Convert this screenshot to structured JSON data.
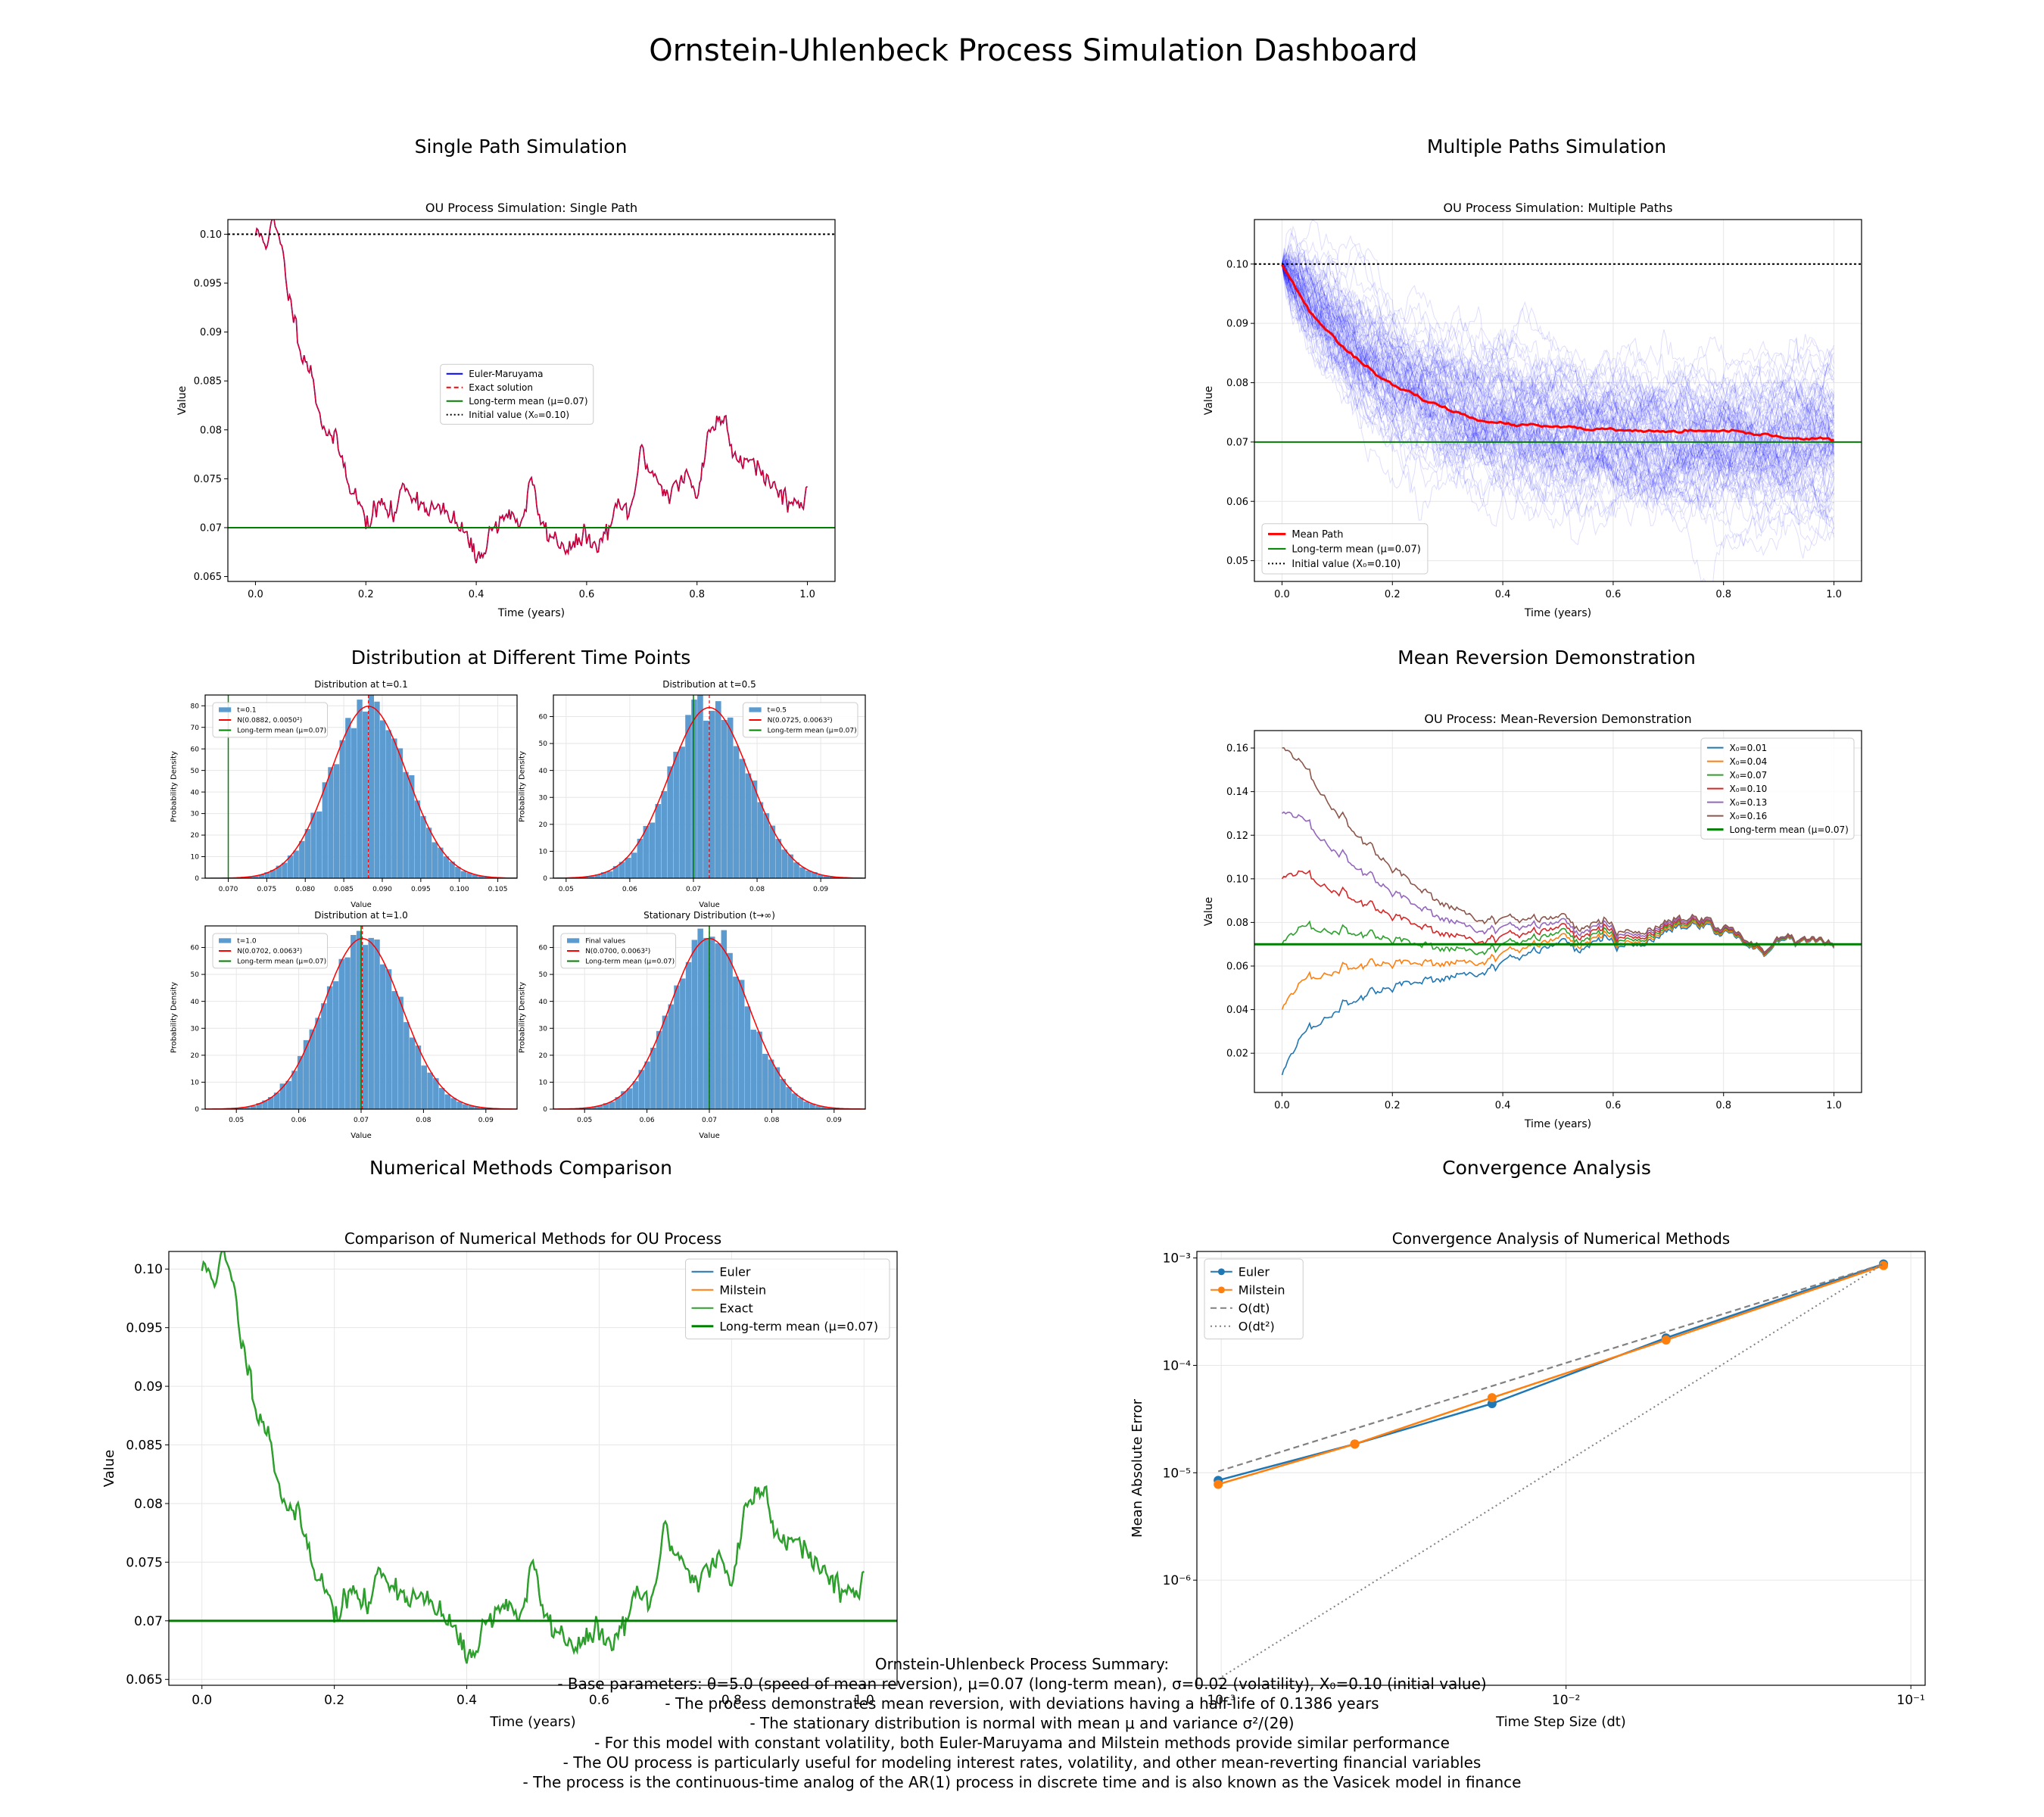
{
  "title": "Ornstein-Uhlenbeck Process Simulation Dashboard",
  "panels": {
    "single": "Single Path Simulation",
    "multi": "Multiple Paths Simulation",
    "dist": "Distribution at Different Time Points",
    "revert": "Mean Reversion Demonstration",
    "methods": "Numerical Methods Comparison",
    "conv": "Convergence Analysis"
  },
  "summary": {
    "heading": "Ornstein-Uhlenbeck Process Summary:",
    "lines": [
      "- Base parameters: θ=5.0 (speed of mean reversion), μ=0.07 (long-term mean), σ=0.02 (volatility), X₀=0.10 (initial value)",
      "- The process demonstrates mean reversion, with deviations having a half-life of 0.1386 years",
      "- The stationary distribution is normal with mean μ and variance σ²/(2θ)",
      "- For this model with constant volatility, both Euler-Maruyama and Milstein methods provide similar performance",
      "- The OU process is particularly useful for modeling interest rates, volatility, and other mean-reverting financial variables",
      "- The process is the continuous-time analog of the AR(1) process in discrete time and is also known as the Vasicek model in finance"
    ]
  },
  "colors": {
    "euler": "#0000ff",
    "exact": "#ff0000",
    "mean": "#008000",
    "path": "#a0005a",
    "hist": "#5b9bd0",
    "c1": "#1f77b4",
    "c2": "#ff7f0e",
    "c3": "#2ca02c",
    "c4": "#d62728",
    "c5": "#9467bd",
    "c6": "#8c564b",
    "grid": "#e6e6e6"
  },
  "chart_data": [
    {
      "id": "single",
      "type": "line",
      "title": "OU Process Simulation: Single Path",
      "xlabel": "Time (years)",
      "ylabel": "Value",
      "xlim": [
        -0.05,
        1.05
      ],
      "ylim": [
        0.0645,
        0.1015
      ],
      "xticks": [
        0.0,
        0.2,
        0.4,
        0.6,
        0.8,
        1.0
      ],
      "yticks": [
        0.065,
        0.07,
        0.075,
        0.08,
        0.085,
        0.09,
        0.095,
        0.1
      ],
      "grid": false,
      "legend_position": "center",
      "legend": [
        "Euler-Maruyama",
        "Exact solution",
        "Long-term mean (μ=0.07)",
        "Initial value (X₀=0.10)"
      ],
      "hlines": [
        0.07,
        0.1
      ],
      "path": {
        "x": [
          0,
          0.02,
          0.03,
          0.04,
          0.05,
          0.06,
          0.08,
          0.1,
          0.12,
          0.15,
          0.17,
          0.2,
          0.23,
          0.25,
          0.27,
          0.3,
          0.33,
          0.35,
          0.38,
          0.4,
          0.42,
          0.45,
          0.48,
          0.5,
          0.52,
          0.55,
          0.58,
          0.6,
          0.62,
          0.65,
          0.68,
          0.7,
          0.72,
          0.75,
          0.78,
          0.8,
          0.82,
          0.85,
          0.87,
          0.9,
          0.93,
          0.95,
          0.98,
          1.0
        ],
        "y": [
          0.1,
          0.0995,
          0.1008,
          0.1,
          0.0975,
          0.094,
          0.089,
          0.086,
          0.081,
          0.078,
          0.075,
          0.0705,
          0.0725,
          0.071,
          0.0745,
          0.0725,
          0.0718,
          0.071,
          0.0695,
          0.0665,
          0.069,
          0.0715,
          0.0705,
          0.0745,
          0.07,
          0.0685,
          0.068,
          0.0693,
          0.0675,
          0.0715,
          0.0718,
          0.0778,
          0.0755,
          0.0735,
          0.0752,
          0.073,
          0.08,
          0.0812,
          0.077,
          0.0776,
          0.0745,
          0.0738,
          0.0722,
          0.0735
        ]
      }
    },
    {
      "id": "multi",
      "type": "line",
      "title": "OU Process Simulation: Multiple Paths",
      "xlabel": "Time (years)",
      "ylabel": "Value",
      "xlim": [
        -0.05,
        1.05
      ],
      "ylim": [
        0.0465,
        0.1075
      ],
      "xticks": [
        0.0,
        0.2,
        0.4,
        0.6,
        0.8,
        1.0
      ],
      "yticks": [
        0.05,
        0.06,
        0.07,
        0.08,
        0.09,
        0.1
      ],
      "grid": true,
      "legend_position": "lower-left",
      "legend": [
        "Mean Path",
        "Long-term mean (μ=0.07)",
        "Initial value (X₀=0.10)"
      ],
      "hlines": [
        0.07,
        0.1
      ],
      "num_paths": 100,
      "mean_path": {
        "x": [
          0,
          0.05,
          0.1,
          0.15,
          0.2,
          0.25,
          0.3,
          0.35,
          0.4,
          0.45,
          0.5,
          0.55,
          0.6,
          0.65,
          0.7,
          0.75,
          0.8,
          0.85,
          0.9,
          0.95,
          1.0
        ],
        "y": [
          0.1,
          0.092,
          0.087,
          0.083,
          0.0795,
          0.0775,
          0.0755,
          0.074,
          0.073,
          0.0728,
          0.0725,
          0.0722,
          0.072,
          0.0718,
          0.0718,
          0.0718,
          0.0718,
          0.0714,
          0.071,
          0.0705,
          0.0705
        ]
      }
    },
    {
      "id": "dist",
      "type": "bar",
      "subtitle": "histograms",
      "panels": [
        {
          "title": "Distribution at t=0.1",
          "legend": [
            "t=0.1",
            "N(0.0882, 0.0050²)",
            "Long-term mean (μ=0.07)"
          ],
          "mean": 0.0882,
          "sd": 0.005,
          "xlim": [
            0.067,
            0.1075
          ],
          "ylim": [
            0,
            85
          ],
          "xticks": [
            0.07,
            0.075,
            0.08,
            0.085,
            0.09,
            0.095,
            0.1,
            0.105
          ],
          "yticks": [
            0,
            10,
            20,
            30,
            40,
            50,
            60,
            70,
            80
          ],
          "mu": 0.07,
          "xlabel": "Value",
          "ylabel": "Probability Density",
          "decimals": 3
        },
        {
          "title": "Distribution at t=0.5",
          "legend": [
            "t=0.5",
            "N(0.0725, 0.0063²)",
            "Long-term mean (μ=0.07)"
          ],
          "mean": 0.0725,
          "sd": 0.0063,
          "xlim": [
            0.048,
            0.097
          ],
          "ylim": [
            0,
            68
          ],
          "xticks": [
            0.05,
            0.06,
            0.07,
            0.08,
            0.09
          ],
          "yticks": [
            0,
            10,
            20,
            30,
            40,
            50,
            60
          ],
          "mu": 0.07,
          "xlabel": "Value",
          "ylabel": "Probability Density",
          "decimals": 2
        },
        {
          "title": "Distribution at t=1.0",
          "legend": [
            "t=1.0",
            "N(0.0702, 0.0063²)",
            "Long-term mean (μ=0.07)"
          ],
          "mean": 0.0702,
          "sd": 0.0063,
          "xlim": [
            0.045,
            0.095
          ],
          "ylim": [
            0,
            68
          ],
          "xticks": [
            0.05,
            0.06,
            0.07,
            0.08,
            0.09
          ],
          "yticks": [
            0,
            10,
            20,
            30,
            40,
            50,
            60
          ],
          "mu": 0.07,
          "xlabel": "Value",
          "ylabel": "Probability Density",
          "decimals": 2
        },
        {
          "title": "Stationary Distribution (t→∞)",
          "legend": [
            "Final values",
            "N(0.0700, 0.0063²)",
            "Long-term mean (μ=0.07)"
          ],
          "mean": 0.07,
          "sd": 0.0063,
          "xlim": [
            0.045,
            0.095
          ],
          "ylim": [
            0,
            68
          ],
          "xticks": [
            0.05,
            0.06,
            0.07,
            0.08,
            0.09
          ],
          "yticks": [
            0,
            10,
            20,
            30,
            40,
            50,
            60
          ],
          "mu": 0.07,
          "xlabel": "Value",
          "ylabel": "Probability Density",
          "decimals": 2
        }
      ]
    },
    {
      "id": "revert",
      "type": "line",
      "title": "OU Process: Mean-Reversion Demonstration",
      "xlabel": "Time (years)",
      "ylabel": "Value",
      "xlim": [
        -0.05,
        1.05
      ],
      "ylim": [
        0.002,
        0.168
      ],
      "xticks": [
        0.0,
        0.2,
        0.4,
        0.6,
        0.8,
        1.0
      ],
      "yticks": [
        0.02,
        0.04,
        0.06,
        0.08,
        0.1,
        0.12,
        0.14,
        0.16
      ],
      "grid": true,
      "legend_position": "upper-right",
      "legend": [
        "X₀=0.01",
        "X₀=0.04",
        "X₀=0.07",
        "X₀=0.10",
        "X₀=0.13",
        "X₀=0.16",
        "Long-term mean (μ=0.07)"
      ],
      "series": [
        {
          "name": "X₀=0.01",
          "x0": 0.01
        },
        {
          "name": "X₀=0.04",
          "x0": 0.04
        },
        {
          "name": "X₀=0.07",
          "x0": 0.07
        },
        {
          "name": "X₀=0.10",
          "x0": 0.1
        },
        {
          "name": "X₀=0.13",
          "x0": 0.13
        },
        {
          "name": "X₀=0.16",
          "x0": 0.16
        }
      ],
      "theta": 5.0,
      "mu": 0.07
    },
    {
      "id": "methods",
      "type": "line",
      "title": "Comparison of Numerical Methods for OU Process",
      "xlabel": "Time (years)",
      "ylabel": "Value",
      "xlim": [
        -0.05,
        1.05
      ],
      "ylim": [
        0.0645,
        0.1015
      ],
      "xticks": [
        0.0,
        0.2,
        0.4,
        0.6,
        0.8,
        1.0
      ],
      "yticks": [
        0.065,
        0.07,
        0.075,
        0.08,
        0.085,
        0.09,
        0.095,
        0.1
      ],
      "grid": true,
      "legend_position": "upper-right",
      "legend": [
        "Euler",
        "Milstein",
        "Exact",
        "Long-term mean (μ=0.07)"
      ],
      "hlines": [
        0.07
      ]
    },
    {
      "id": "conv",
      "type": "line",
      "log_x": true,
      "log_y": true,
      "title": "Convergence Analysis of Numerical Methods",
      "xlabel": "Time Step Size (dt)",
      "ylabel": "Mean Absolute Error",
      "xlim": [
        0.00085,
        0.11
      ],
      "ylim": [
        1.05e-07,
        0.00115
      ],
      "xticks": [
        0.001,
        0.01,
        0.1
      ],
      "xtick_labels": [
        "10⁻³",
        "10⁻²",
        "10⁻¹"
      ],
      "yticks": [
        1e-06,
        1e-05,
        0.0001,
        0.001
      ],
      "ytick_labels": [
        "10⁻⁶",
        "10⁻⁵",
        "10⁻⁴",
        "10⁻³"
      ],
      "grid": true,
      "legend_position": "upper-left",
      "legend": [
        "Euler",
        "Milstein",
        "O(dt)",
        "O(dt²)"
      ],
      "series": [
        {
          "name": "Euler",
          "x": [
            0.00098,
            0.00244,
            0.0061,
            0.0195,
            0.0833
          ],
          "y": [
            8.5e-06,
            1.85e-05,
            4.4e-05,
            0.00018,
            0.00088
          ]
        },
        {
          "name": "Milstein",
          "x": [
            0.00098,
            0.00244,
            0.0061,
            0.0195,
            0.0833
          ],
          "y": [
            7.8e-06,
            1.85e-05,
            5e-05,
            0.000172,
            0.00085
          ]
        },
        {
          "name": "O(dt)",
          "x": [
            0.00098,
            0.0833
          ],
          "y": [
            1.03e-05,
            0.00088
          ]
        },
        {
          "name": "O(dt²)",
          "x": [
            0.00098,
            0.0833
          ],
          "y": [
            1.2e-07,
            0.00088
          ]
        }
      ]
    }
  ]
}
